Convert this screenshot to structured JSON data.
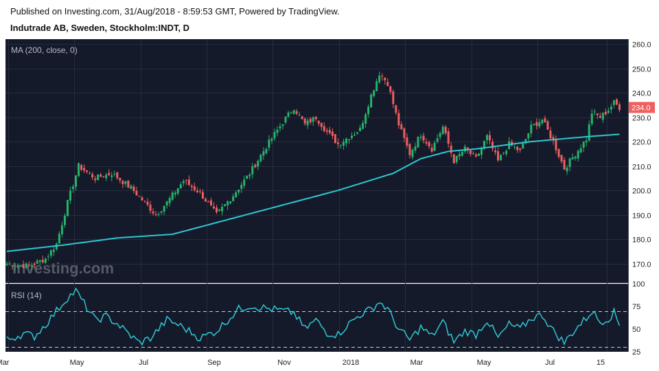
{
  "header": {
    "published": "Published on Investing.com, 31/Aug/2018 - 8:59:53 GMT, Powered by TradingView.",
    "symbol": "Indutrade AB, Sweden, Stockholm:INDT, D"
  },
  "watermark": "Investing.com",
  "colors": {
    "background": "#151a2a",
    "grid": "#262c3e",
    "up": "#26b36b",
    "down": "#ef5f5f",
    "ma": "#2ec8d2",
    "rsi": "#2ec8d2",
    "price_tag": "#ef5f5f"
  },
  "chart_data": [
    {
      "type": "candlestick",
      "indicator_label": "MA (200, close, 0)",
      "last_price_label": "234.0",
      "ylim": [
        162,
        262
      ],
      "y_ticks": [
        "170.0",
        "180.0",
        "190.0",
        "200.0",
        "210.0",
        "220.0",
        "230.0",
        "240.0",
        "250.0",
        "260.0"
      ],
      "x_ticks": [
        "Mar",
        "May",
        "Jul",
        "Sep",
        "Nov",
        "2018",
        "Mar",
        "May",
        "Jul",
        "15"
      ],
      "close_keypoints": [
        [
          0,
          170
        ],
        [
          8,
          169
        ],
        [
          14,
          172
        ],
        [
          18,
          178
        ],
        [
          22,
          195
        ],
        [
          26,
          210
        ],
        [
          32,
          205
        ],
        [
          38,
          207
        ],
        [
          45,
          201
        ],
        [
          50,
          195
        ],
        [
          54,
          190
        ],
        [
          58,
          195
        ],
        [
          64,
          204
        ],
        [
          70,
          199
        ],
        [
          76,
          190
        ],
        [
          82,
          198
        ],
        [
          88,
          207
        ],
        [
          94,
          218
        ],
        [
          100,
          228
        ],
        [
          104,
          234
        ],
        [
          108,
          227
        ],
        [
          112,
          230
        ],
        [
          116,
          224
        ],
        [
          120,
          219
        ],
        [
          124,
          222
        ],
        [
          128,
          225
        ],
        [
          132,
          239
        ],
        [
          135,
          248
        ],
        [
          138,
          244
        ],
        [
          142,
          227
        ],
        [
          146,
          215
        ],
        [
          150,
          223
        ],
        [
          154,
          217
        ],
        [
          158,
          226
        ],
        [
          162,
          212
        ],
        [
          166,
          217
        ],
        [
          170,
          213
        ],
        [
          174,
          222
        ],
        [
          178,
          212
        ],
        [
          182,
          219
        ],
        [
          186,
          216
        ],
        [
          190,
          226
        ],
        [
          194,
          229
        ],
        [
          198,
          220
        ],
        [
          202,
          209
        ],
        [
          206,
          215
        ],
        [
          210,
          221
        ],
        [
          212,
          232
        ],
        [
          215,
          230
        ],
        [
          218,
          233
        ],
        [
          220,
          236
        ],
        [
          222,
          234
        ]
      ],
      "ma_keypoints": [
        [
          0,
          175
        ],
        [
          20,
          177.5
        ],
        [
          40,
          180.5
        ],
        [
          60,
          182
        ],
        [
          80,
          188
        ],
        [
          100,
          194
        ],
        [
          120,
          200
        ],
        [
          140,
          207
        ],
        [
          150,
          213
        ],
        [
          160,
          216
        ],
        [
          170,
          217
        ],
        [
          180,
          218.5
        ],
        [
          190,
          220
        ],
        [
          200,
          221
        ],
        [
          210,
          222
        ],
        [
          222,
          223
        ]
      ]
    },
    {
      "type": "line",
      "indicator_label": "RSI (14)",
      "ylim": [
        25,
        100
      ],
      "y_ticks": [
        "25",
        "50",
        "75",
        "100"
      ],
      "reference_lines": [
        30,
        70
      ],
      "keypoints": [
        [
          0,
          38
        ],
        [
          6,
          45
        ],
        [
          10,
          42
        ],
        [
          14,
          55
        ],
        [
          18,
          70
        ],
        [
          22,
          85
        ],
        [
          25,
          92
        ],
        [
          28,
          78
        ],
        [
          32,
          60
        ],
        [
          36,
          64
        ],
        [
          40,
          56
        ],
        [
          44,
          45
        ],
        [
          48,
          35
        ],
        [
          52,
          40
        ],
        [
          58,
          60
        ],
        [
          62,
          55
        ],
        [
          66,
          48
        ],
        [
          70,
          40
        ],
        [
          76,
          48
        ],
        [
          80,
          60
        ],
        [
          84,
          72
        ],
        [
          88,
          76
        ],
        [
          92,
          74
        ],
        [
          96,
          72
        ],
        [
          100,
          70
        ],
        [
          104,
          68
        ],
        [
          108,
          50
        ],
        [
          112,
          60
        ],
        [
          116,
          46
        ],
        [
          120,
          44
        ],
        [
          124,
          56
        ],
        [
          128,
          66
        ],
        [
          132,
          72
        ],
        [
          135,
          80
        ],
        [
          138,
          72
        ],
        [
          142,
          50
        ],
        [
          146,
          38
        ],
        [
          150,
          52
        ],
        [
          154,
          42
        ],
        [
          158,
          58
        ],
        [
          162,
          36
        ],
        [
          166,
          48
        ],
        [
          170,
          44
        ],
        [
          174,
          60
        ],
        [
          178,
          40
        ],
        [
          182,
          55
        ],
        [
          186,
          50
        ],
        [
          190,
          62
        ],
        [
          194,
          66
        ],
        [
          198,
          48
        ],
        [
          202,
          35
        ],
        [
          206,
          50
        ],
        [
          210,
          62
        ],
        [
          212,
          70
        ],
        [
          215,
          58
        ],
        [
          218,
          62
        ],
        [
          220,
          68
        ],
        [
          222,
          55
        ]
      ]
    }
  ]
}
